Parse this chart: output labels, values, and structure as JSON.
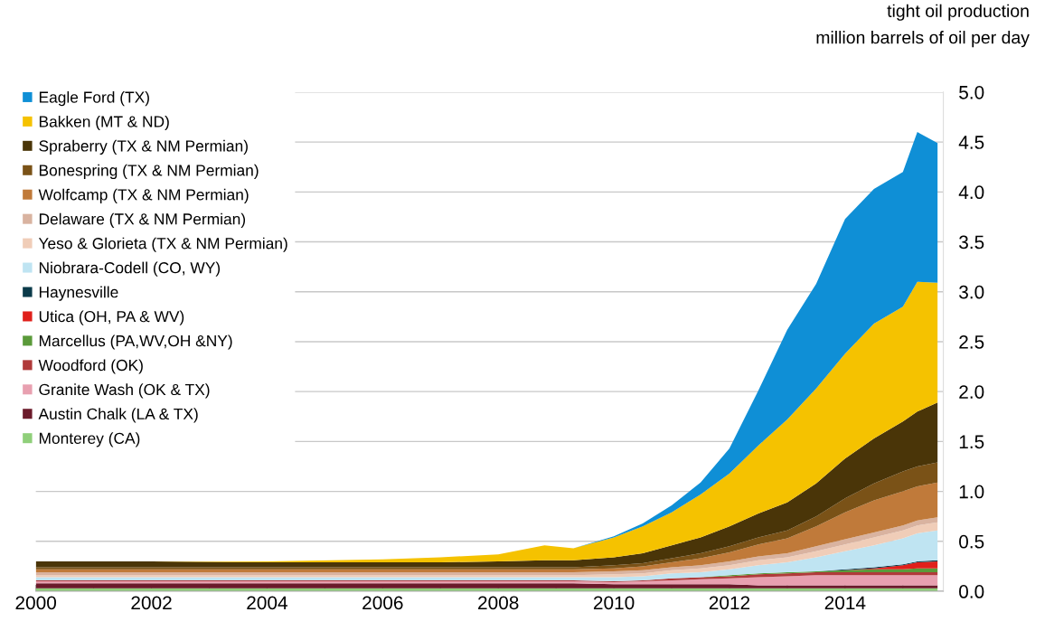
{
  "chart_data": {
    "type": "area",
    "stacked": true,
    "ylabel": "tight oil production\nmillion barrels of oil per day",
    "x": [
      2000,
      2002,
      2004,
      2006,
      2007,
      2008,
      2008.8,
      2009.3,
      2010,
      2010.5,
      2011,
      2011.5,
      2012,
      2012.5,
      2013,
      2013.5,
      2014,
      2014.5,
      2015,
      2015.25,
      2015.6
    ],
    "series": [
      {
        "name": "Monterey (CA)",
        "color": "#8fcf7a",
        "values": [
          0.03,
          0.03,
          0.03,
          0.03,
          0.03,
          0.03,
          0.03,
          0.03,
          0.03,
          0.03,
          0.03,
          0.03,
          0.03,
          0.03,
          0.03,
          0.03,
          0.03,
          0.03,
          0.03,
          0.03,
          0.03
        ]
      },
      {
        "name": "Austin Chalk (LA & TX)",
        "color": "#6b1a2a",
        "values": [
          0.05,
          0.05,
          0.05,
          0.05,
          0.05,
          0.05,
          0.05,
          0.05,
          0.04,
          0.04,
          0.04,
          0.04,
          0.04,
          0.03,
          0.03,
          0.03,
          0.03,
          0.03,
          0.03,
          0.03,
          0.03
        ]
      },
      {
        "name": "Granite Wash (OK & TX)",
        "color": "#e8a0b0",
        "values": [
          0.02,
          0.02,
          0.02,
          0.02,
          0.02,
          0.02,
          0.02,
          0.02,
          0.02,
          0.03,
          0.04,
          0.05,
          0.06,
          0.08,
          0.09,
          0.1,
          0.1,
          0.1,
          0.1,
          0.1,
          0.1
        ]
      },
      {
        "name": "Woodford (OK)",
        "color": "#b03a3a",
        "values": [
          0.01,
          0.01,
          0.01,
          0.01,
          0.01,
          0.01,
          0.01,
          0.01,
          0.01,
          0.01,
          0.02,
          0.02,
          0.02,
          0.03,
          0.03,
          0.03,
          0.03,
          0.03,
          0.03,
          0.03,
          0.03
        ]
      },
      {
        "name": "Marcellus (PA,WV,OH &NY)",
        "color": "#5a9a3a",
        "values": [
          0,
          0,
          0,
          0,
          0,
          0,
          0,
          0,
          0,
          0,
          0,
          0,
          0.01,
          0.01,
          0.01,
          0.01,
          0.02,
          0.03,
          0.03,
          0.04,
          0.04
        ]
      },
      {
        "name": "Utica (OH, PA & WV)",
        "color": "#e0201b",
        "values": [
          0,
          0,
          0,
          0,
          0,
          0,
          0,
          0,
          0,
          0,
          0,
          0,
          0,
          0,
          0,
          0,
          0,
          0.01,
          0.04,
          0.06,
          0.07
        ]
      },
      {
        "name": "Haynesville",
        "color": "#0b3b4a",
        "values": [
          0,
          0,
          0,
          0,
          0,
          0,
          0,
          0,
          0,
          0,
          0,
          0,
          0,
          0,
          0,
          0,
          0.01,
          0.01,
          0.01,
          0.01,
          0.01
        ]
      },
      {
        "name": "Niobrara-Codell (CO, WY)",
        "color": "#bfe4f2",
        "values": [
          0.03,
          0.03,
          0.03,
          0.03,
          0.03,
          0.03,
          0.03,
          0.03,
          0.04,
          0.04,
          0.05,
          0.05,
          0.06,
          0.08,
          0.1,
          0.14,
          0.18,
          0.22,
          0.26,
          0.28,
          0.3
        ]
      },
      {
        "name": "Yeso & Glorieta (TX & NM Permian)",
        "color": "#f0cdb8",
        "values": [
          0.02,
          0.02,
          0.02,
          0.02,
          0.02,
          0.02,
          0.02,
          0.02,
          0.03,
          0.03,
          0.03,
          0.04,
          0.04,
          0.05,
          0.05,
          0.06,
          0.07,
          0.08,
          0.08,
          0.08,
          0.08
        ]
      },
      {
        "name": "Delaware (TX & NM Permian)",
        "color": "#d9b3a0",
        "values": [
          0.03,
          0.03,
          0.03,
          0.03,
          0.03,
          0.03,
          0.03,
          0.03,
          0.03,
          0.03,
          0.03,
          0.03,
          0.04,
          0.04,
          0.04,
          0.05,
          0.05,
          0.05,
          0.05,
          0.05,
          0.05
        ]
      },
      {
        "name": "Wolfcamp (TX & NM Permian)",
        "color": "#c07a3a",
        "values": [
          0.03,
          0.03,
          0.03,
          0.03,
          0.03,
          0.03,
          0.03,
          0.03,
          0.03,
          0.04,
          0.05,
          0.07,
          0.09,
          0.12,
          0.15,
          0.2,
          0.27,
          0.32,
          0.34,
          0.34,
          0.35
        ]
      },
      {
        "name": "Bonespring (TX & NM Permian)",
        "color": "#7a5217",
        "values": [
          0.02,
          0.02,
          0.02,
          0.02,
          0.02,
          0.02,
          0.02,
          0.02,
          0.03,
          0.03,
          0.04,
          0.05,
          0.06,
          0.07,
          0.08,
          0.1,
          0.14,
          0.17,
          0.2,
          0.2,
          0.2
        ]
      },
      {
        "name": "Spraberry (TX & NM Permian)",
        "color": "#4a3508",
        "values": [
          0.06,
          0.06,
          0.05,
          0.05,
          0.05,
          0.06,
          0.07,
          0.07,
          0.08,
          0.1,
          0.13,
          0.16,
          0.2,
          0.24,
          0.28,
          0.33,
          0.4,
          0.45,
          0.5,
          0.55,
          0.6
        ]
      },
      {
        "name": "Bakken (MT & ND)",
        "color": "#f5c200",
        "values": [
          0,
          0,
          0.01,
          0.03,
          0.05,
          0.07,
          0.15,
          0.12,
          0.2,
          0.27,
          0.33,
          0.43,
          0.53,
          0.68,
          0.83,
          0.95,
          1.05,
          1.15,
          1.15,
          1.3,
          1.2
        ]
      },
      {
        "name": "Eagle Ford (TX)",
        "color": "#0f8fd6",
        "values": [
          0,
          0,
          0,
          0,
          0,
          0,
          0,
          0,
          0.01,
          0.03,
          0.07,
          0.12,
          0.25,
          0.55,
          0.9,
          1.05,
          1.35,
          1.35,
          1.35,
          1.5,
          1.4
        ]
      }
    ],
    "xlim": [
      2000,
      2015.7
    ],
    "xticks": [
      2000,
      {
        "value": 2001,
        "label": null
      },
      2002,
      {
        "value": 2003,
        "label": null
      },
      2004,
      {
        "value": 2005,
        "label": null
      },
      2006,
      {
        "value": 2007,
        "label": null
      },
      2008,
      {
        "value": 2009,
        "label": null
      },
      2010,
      {
        "value": 2011,
        "label": null
      },
      2012,
      {
        "value": 2013,
        "label": null
      },
      2014,
      {
        "value": 2015,
        "label": null
      }
    ],
    "ylim": [
      0,
      5
    ],
    "yticks": [
      {
        "value": 0,
        "label": "0.0"
      },
      {
        "value": 0.5,
        "label": "0.5"
      },
      {
        "value": 1,
        "label": "1.0"
      },
      {
        "value": 1.5,
        "label": "1.5"
      },
      {
        "value": 2,
        "label": "2.0"
      },
      {
        "value": 2.5,
        "label": "2.5"
      },
      {
        "value": 3,
        "label": "3.0"
      },
      {
        "value": 3.5,
        "label": "3.5"
      },
      {
        "value": 4,
        "label": "4.0"
      },
      {
        "value": 4.5,
        "label": "4.5"
      },
      {
        "value": 5,
        "label": "5.0"
      }
    ],
    "grid": "y",
    "legend": "top left"
  }
}
